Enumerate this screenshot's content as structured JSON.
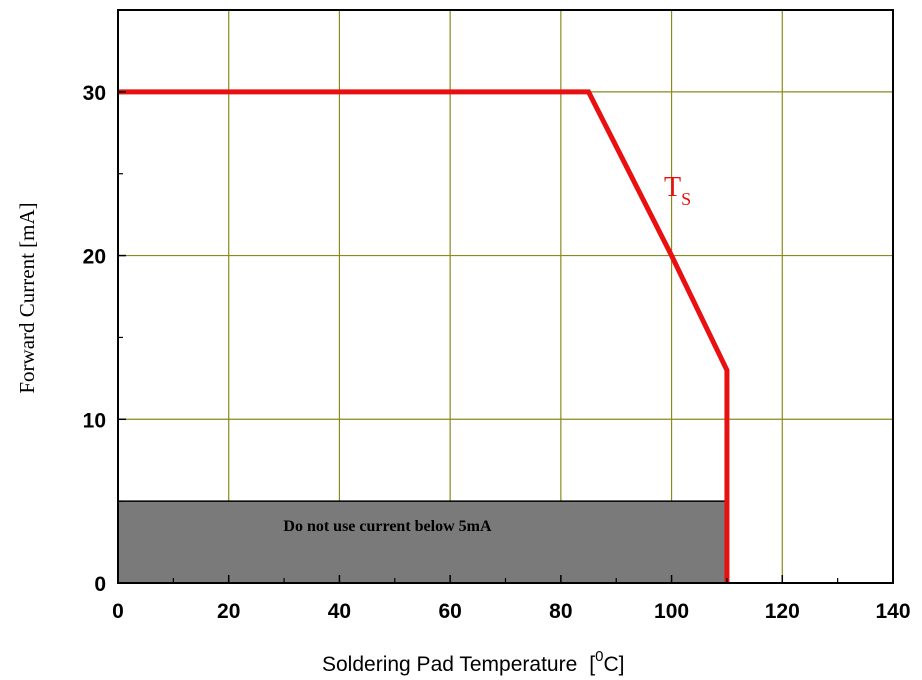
{
  "chart_data": {
    "type": "line",
    "title": "",
    "xlabel": "Soldering Pad Temperature",
    "xlabel_unit_base": "[",
    "xlabel_unit_sup": "0",
    "xlabel_unit_rest": "C]",
    "ylabel": "Forward Current [mA]",
    "xlim": [
      0,
      140
    ],
    "ylim": [
      0,
      35
    ],
    "x_ticks": [
      0,
      20,
      40,
      60,
      80,
      100,
      120,
      140
    ],
    "y_ticks": [
      0,
      10,
      20,
      30
    ],
    "x_minor_ticks": [
      10,
      30,
      50,
      70,
      90,
      110,
      130
    ],
    "y_minor_ticks": [
      5,
      15,
      25
    ],
    "grid": true,
    "grid_color": "#8a8a1e",
    "series": [
      {
        "name_main": "T",
        "name_sub": "S",
        "color": "#e81010",
        "x": [
          0,
          85,
          100,
          110,
          110
        ],
        "y": [
          30,
          30,
          20,
          13,
          0
        ]
      }
    ],
    "annotations": [
      {
        "type": "region",
        "text": "Do not use current below 5mA",
        "x_range": [
          0,
          110
        ],
        "y_range": [
          0,
          5
        ],
        "fill": "#7a7a7a"
      }
    ]
  }
}
